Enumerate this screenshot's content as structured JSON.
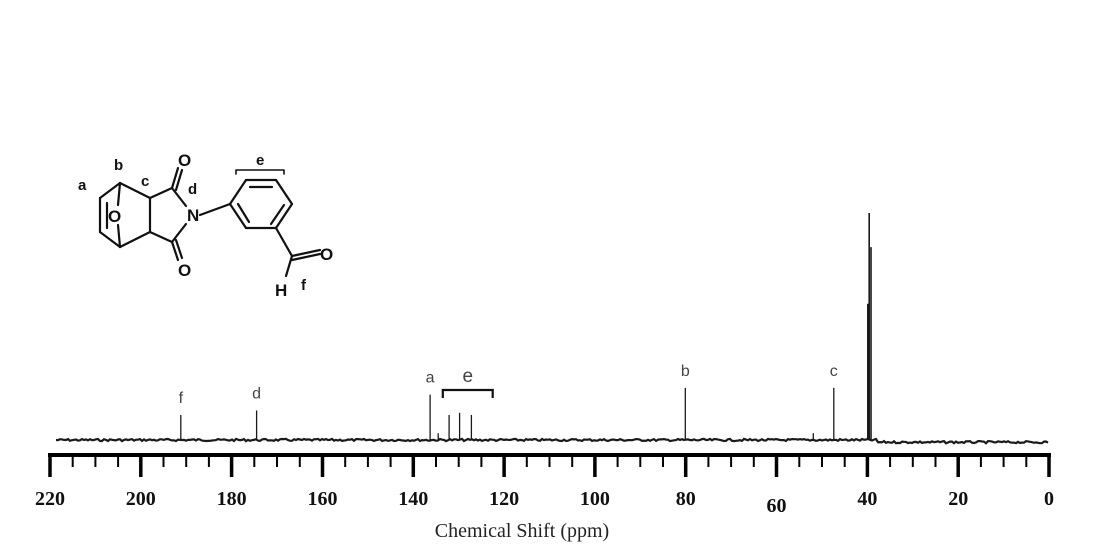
{
  "chart_data": {
    "type": "line",
    "xlabel": "Chemical Shift (ppm)",
    "xlim": [
      220,
      0
    ],
    "x_reversed": true,
    "x_ticks": [
      220,
      200,
      180,
      160,
      140,
      120,
      100,
      80,
      60,
      40,
      20,
      0
    ],
    "x_tick_labels": [
      "220",
      "200",
      "180",
      "160",
      "140",
      "120",
      "100",
      "80",
      "60",
      "40",
      "20",
      "0"
    ],
    "grid": false,
    "peaks": [
      {
        "shift": 191.2,
        "intensity": 0.11,
        "label": "f"
      },
      {
        "shift": 174.5,
        "intensity": 0.13,
        "label": "d"
      },
      {
        "shift": 136.3,
        "intensity": 0.2,
        "label": "a"
      },
      {
        "shift": 134.5,
        "intensity": 0.03,
        "label": ""
      },
      {
        "shift": 132.1,
        "intensity": 0.11,
        "label": ""
      },
      {
        "shift": 129.8,
        "intensity": 0.12,
        "label": ""
      },
      {
        "shift": 127.2,
        "intensity": 0.11,
        "label": ""
      },
      {
        "shift": 80.1,
        "intensity": 0.23,
        "label": "b"
      },
      {
        "shift": 51.9,
        "intensity": 0.03,
        "label": ""
      },
      {
        "shift": 47.4,
        "intensity": 0.23,
        "label": "c"
      },
      {
        "shift": 39.6,
        "intensity": 1.0,
        "label": ""
      },
      {
        "shift": 39.2,
        "intensity": 0.85,
        "label": ""
      },
      {
        "shift": 39.9,
        "intensity": 0.6,
        "label": ""
      }
    ],
    "group_labels": [
      {
        "label": "e",
        "from": 133.5,
        "to": 122.5
      }
    ],
    "colors": {
      "spectrum": "#1a1a1a",
      "axis": "#000000",
      "labels": "#444444"
    }
  },
  "structure": {
    "atom_labels": {
      "carbonyl_top_O": "O",
      "carbonyl_bottom_O": "O",
      "imide_N": "N",
      "bridge_O": "O",
      "aldehyde_O": "O",
      "aldehyde_H": "H"
    },
    "position_labels": {
      "a": "a",
      "b": "b",
      "c": "c",
      "d": "d",
      "e": "e",
      "f": "f"
    }
  }
}
